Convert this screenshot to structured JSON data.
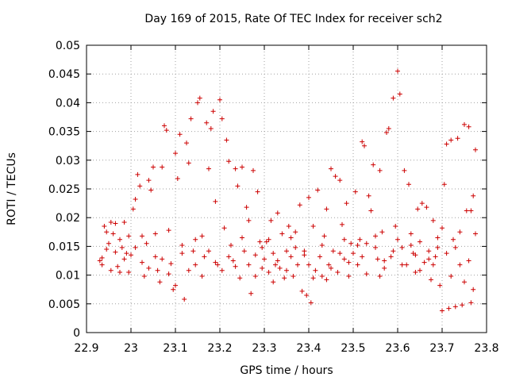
{
  "chart_data": {
    "type": "scatter",
    "title": "Day 169 of 2015, Rate Of TEC Index for receiver sch2",
    "xlabel": "GPS time / hours",
    "ylabel": "ROTI / TECUs",
    "xlim": [
      22.9,
      23.8
    ],
    "ylim": [
      0,
      0.05
    ],
    "xticks": [
      22.9,
      23.0,
      23.1,
      23.2,
      23.3,
      23.4,
      23.5,
      23.6,
      23.7,
      23.8
    ],
    "xtick_labels": [
      "22.9",
      "23",
      "23.1",
      "23.2",
      "23.3",
      "23.4",
      "23.5",
      "23.6",
      "23.7",
      "23.8"
    ],
    "yticks": [
      0,
      0.005,
      0.01,
      0.015,
      0.02,
      0.025,
      0.03,
      0.035,
      0.04,
      0.045,
      0.05
    ],
    "ytick_labels": [
      "0",
      "0.005",
      "0.01",
      "0.015",
      "0.02",
      "0.025",
      "0.03",
      "0.035",
      "0.04",
      "0.045",
      "0.05"
    ],
    "grid": true,
    "marker": "+",
    "marker_color": "#cc0000",
    "series": [
      {
        "name": "sch2",
        "points": [
          [
            22.93,
            0.0125
          ],
          [
            22.935,
            0.013
          ],
          [
            22.94,
            0.0185
          ],
          [
            22.945,
            0.0175
          ],
          [
            22.95,
            0.0155
          ],
          [
            22.955,
            0.0108
          ],
          [
            22.96,
            0.0172
          ],
          [
            22.965,
            0.014
          ],
          [
            22.97,
            0.0115
          ],
          [
            22.975,
            0.0162
          ],
          [
            22.98,
            0.0148
          ],
          [
            22.985,
            0.0192
          ],
          [
            22.99,
            0.0138
          ],
          [
            22.995,
            0.0105
          ],
          [
            22.935,
            0.0118
          ],
          [
            22.945,
            0.0145
          ],
          [
            22.955,
            0.0192
          ],
          [
            22.965,
            0.019
          ],
          [
            22.975,
            0.0105
          ],
          [
            22.985,
            0.0128
          ],
          [
            22.995,
            0.0168
          ],
          [
            23.0,
            0.0135
          ],
          [
            23.005,
            0.0215
          ],
          [
            23.01,
            0.0232
          ],
          [
            23.015,
            0.0275
          ],
          [
            23.02,
            0.0255
          ],
          [
            23.025,
            0.0122
          ],
          [
            23.03,
            0.0098
          ],
          [
            23.035,
            0.0155
          ],
          [
            23.04,
            0.0265
          ],
          [
            23.045,
            0.0248
          ],
          [
            23.05,
            0.0288
          ],
          [
            23.055,
            0.0132
          ],
          [
            23.06,
            0.0108
          ],
          [
            23.065,
            0.0088
          ],
          [
            23.07,
            0.0288
          ],
          [
            23.075,
            0.036
          ],
          [
            23.08,
            0.0352
          ],
          [
            23.085,
            0.0178
          ],
          [
            23.09,
            0.012
          ],
          [
            23.095,
            0.0075
          ],
          [
            23.1,
            0.0312
          ],
          [
            23.105,
            0.0268
          ],
          [
            23.11,
            0.0345
          ],
          [
            23.115,
            0.0152
          ],
          [
            23.12,
            0.0058
          ],
          [
            23.125,
            0.033
          ],
          [
            23.13,
            0.0295
          ],
          [
            23.135,
            0.0372
          ],
          [
            23.14,
            0.0142
          ],
          [
            23.145,
            0.0118
          ],
          [
            23.15,
            0.04
          ],
          [
            23.155,
            0.0408
          ],
          [
            23.16,
            0.0168
          ],
          [
            23.165,
            0.0132
          ],
          [
            23.17,
            0.0365
          ],
          [
            23.175,
            0.0285
          ],
          [
            23.18,
            0.0355
          ],
          [
            23.185,
            0.0385
          ],
          [
            23.19,
            0.0228
          ],
          [
            23.195,
            0.0118
          ],
          [
            23.2,
            0.0405
          ],
          [
            23.205,
            0.0372
          ],
          [
            23.21,
            0.0182
          ],
          [
            23.215,
            0.0335
          ],
          [
            23.22,
            0.0298
          ],
          [
            23.225,
            0.0152
          ],
          [
            23.23,
            0.0125
          ],
          [
            23.235,
            0.0285
          ],
          [
            23.24,
            0.0255
          ],
          [
            23.245,
            0.0095
          ],
          [
            23.25,
            0.0288
          ],
          [
            23.255,
            0.0142
          ],
          [
            23.26,
            0.0218
          ],
          [
            23.265,
            0.0195
          ],
          [
            23.27,
            0.0068
          ],
          [
            23.275,
            0.0282
          ],
          [
            23.28,
            0.0135
          ],
          [
            23.285,
            0.0245
          ],
          [
            23.29,
            0.0158
          ],
          [
            23.295,
            0.0112
          ],
          [
            23.01,
            0.0148
          ],
          [
            23.025,
            0.0168
          ],
          [
            23.04,
            0.0112
          ],
          [
            23.055,
            0.0172
          ],
          [
            23.07,
            0.0128
          ],
          [
            23.085,
            0.0102
          ],
          [
            23.1,
            0.0082
          ],
          [
            23.115,
            0.0138
          ],
          [
            23.13,
            0.0108
          ],
          [
            23.145,
            0.0162
          ],
          [
            23.16,
            0.0098
          ],
          [
            23.175,
            0.0142
          ],
          [
            23.19,
            0.0122
          ],
          [
            23.205,
            0.0108
          ],
          [
            23.22,
            0.0132
          ],
          [
            23.235,
            0.0115
          ],
          [
            23.25,
            0.0165
          ],
          [
            23.265,
            0.0118
          ],
          [
            23.28,
            0.0098
          ],
          [
            23.295,
            0.0148
          ],
          [
            23.3,
            0.0128
          ],
          [
            23.305,
            0.0158
          ],
          [
            23.31,
            0.0105
          ],
          [
            23.315,
            0.0195
          ],
          [
            23.32,
            0.0138
          ],
          [
            23.325,
            0.0118
          ],
          [
            23.33,
            0.0208
          ],
          [
            23.335,
            0.0112
          ],
          [
            23.34,
            0.0172
          ],
          [
            23.345,
            0.0095
          ],
          [
            23.35,
            0.0142
          ],
          [
            23.355,
            0.0185
          ],
          [
            23.36,
            0.0132
          ],
          [
            23.365,
            0.0098
          ],
          [
            23.37,
            0.0148
          ],
          [
            23.375,
            0.0118
          ],
          [
            23.38,
            0.0222
          ],
          [
            23.385,
            0.0072
          ],
          [
            23.39,
            0.0135
          ],
          [
            23.395,
            0.0065
          ],
          [
            23.4,
            0.0235
          ],
          [
            23.405,
            0.0052
          ],
          [
            23.41,
            0.0185
          ],
          [
            23.415,
            0.0108
          ],
          [
            23.42,
            0.0248
          ],
          [
            23.425,
            0.0132
          ],
          [
            23.43,
            0.0098
          ],
          [
            23.435,
            0.0168
          ],
          [
            23.44,
            0.0215
          ],
          [
            23.445,
            0.0118
          ],
          [
            23.45,
            0.0285
          ],
          [
            23.455,
            0.0142
          ],
          [
            23.46,
            0.0272
          ],
          [
            23.465,
            0.0105
          ],
          [
            23.47,
            0.0265
          ],
          [
            23.475,
            0.0188
          ],
          [
            23.48,
            0.0128
          ],
          [
            23.485,
            0.0225
          ],
          [
            23.49,
            0.0098
          ],
          [
            23.495,
            0.0155
          ],
          [
            23.31,
            0.0162
          ],
          [
            23.33,
            0.0125
          ],
          [
            23.35,
            0.0108
          ],
          [
            23.37,
            0.0175
          ],
          [
            23.39,
            0.0142
          ],
          [
            23.41,
            0.0095
          ],
          [
            23.43,
            0.0152
          ],
          [
            23.45,
            0.0112
          ],
          [
            23.47,
            0.0138
          ],
          [
            23.49,
            0.0122
          ],
          [
            23.32,
            0.0088
          ],
          [
            23.36,
            0.0165
          ],
          [
            23.4,
            0.0118
          ],
          [
            23.44,
            0.0092
          ],
          [
            23.48,
            0.0162
          ],
          [
            23.5,
            0.0138
          ],
          [
            23.505,
            0.0245
          ],
          [
            23.51,
            0.0118
          ],
          [
            23.515,
            0.0162
          ],
          [
            23.52,
            0.0332
          ],
          [
            23.525,
            0.0325
          ],
          [
            23.53,
            0.0155
          ],
          [
            23.535,
            0.0238
          ],
          [
            23.54,
            0.0212
          ],
          [
            23.545,
            0.0292
          ],
          [
            23.55,
            0.0148
          ],
          [
            23.555,
            0.0128
          ],
          [
            23.56,
            0.0282
          ],
          [
            23.565,
            0.0175
          ],
          [
            23.57,
            0.0112
          ],
          [
            23.575,
            0.0348
          ],
          [
            23.58,
            0.0355
          ],
          [
            23.585,
            0.0132
          ],
          [
            23.59,
            0.0408
          ],
          [
            23.595,
            0.0185
          ],
          [
            23.6,
            0.0455
          ],
          [
            23.605,
            0.0415
          ],
          [
            23.61,
            0.0148
          ],
          [
            23.615,
            0.0282
          ],
          [
            23.62,
            0.0118
          ],
          [
            23.625,
            0.0258
          ],
          [
            23.63,
            0.0172
          ],
          [
            23.635,
            0.0138
          ],
          [
            23.64,
            0.0105
          ],
          [
            23.645,
            0.0215
          ],
          [
            23.65,
            0.0158
          ],
          [
            23.655,
            0.0225
          ],
          [
            23.66,
            0.0122
          ],
          [
            23.665,
            0.0218
          ],
          [
            23.67,
            0.0142
          ],
          [
            23.675,
            0.0092
          ],
          [
            23.68,
            0.0195
          ],
          [
            23.685,
            0.0132
          ],
          [
            23.69,
            0.0165
          ],
          [
            23.695,
            0.0082
          ],
          [
            23.51,
            0.0152
          ],
          [
            23.53,
            0.0102
          ],
          [
            23.55,
            0.0168
          ],
          [
            23.57,
            0.0125
          ],
          [
            23.59,
            0.0142
          ],
          [
            23.61,
            0.0118
          ],
          [
            23.63,
            0.0152
          ],
          [
            23.65,
            0.0108
          ],
          [
            23.67,
            0.0128
          ],
          [
            23.69,
            0.0148
          ],
          [
            23.52,
            0.0132
          ],
          [
            23.56,
            0.0098
          ],
          [
            23.6,
            0.0162
          ],
          [
            23.64,
            0.0135
          ],
          [
            23.68,
            0.0118
          ],
          [
            23.7,
            0.0038
          ],
          [
            23.705,
            0.0258
          ],
          [
            23.71,
            0.0328
          ],
          [
            23.715,
            0.0042
          ],
          [
            23.72,
            0.0335
          ],
          [
            23.725,
            0.0162
          ],
          [
            23.73,
            0.0045
          ],
          [
            23.735,
            0.0338
          ],
          [
            23.74,
            0.0118
          ],
          [
            23.745,
            0.0048
          ],
          [
            23.75,
            0.0362
          ],
          [
            23.755,
            0.0212
          ],
          [
            23.76,
            0.0358
          ],
          [
            23.765,
            0.0052
          ],
          [
            23.77,
            0.0238
          ],
          [
            23.775,
            0.0318
          ],
          [
            23.7,
            0.0182
          ],
          [
            23.71,
            0.0138
          ],
          [
            23.72,
            0.0098
          ],
          [
            23.73,
            0.0148
          ],
          [
            23.74,
            0.0175
          ],
          [
            23.75,
            0.0088
          ],
          [
            23.76,
            0.0125
          ],
          [
            23.77,
            0.0075
          ],
          [
            23.775,
            0.0172
          ],
          [
            23.765,
            0.0212
          ]
        ]
      }
    ]
  }
}
